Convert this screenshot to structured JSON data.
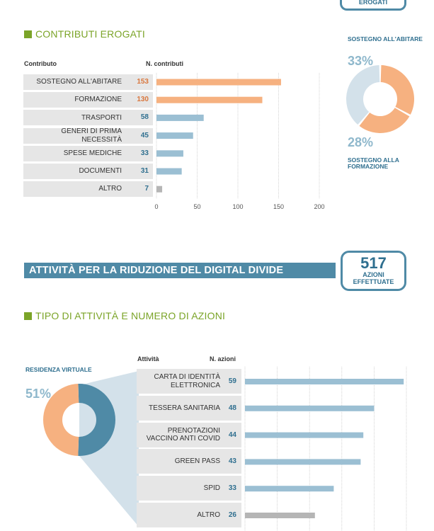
{
  "top_badge": {
    "label": "EROGATI"
  },
  "section1": {
    "title": "CONTRIBUTI EROGATI",
    "col_contributo": "Contributo",
    "col_count": "N. contributi"
  },
  "section2": {
    "banner": "ATTIVITÀ PER LA RIDUZIONE DEL DIGITAL DIVIDE",
    "badge_number": "517",
    "badge_line1": "AZIONI",
    "badge_line2": "EFFETTUATE",
    "title": "TIPO DI ATTIVITÀ E NUMERO DI AZIONI",
    "col_activity": "Attività",
    "col_count": "N. azioni"
  },
  "colors": {
    "orange": "#f6b180",
    "orange_text": "#d9773e",
    "blue": "#9bbfd3",
    "blue_text": "#2f6f8f",
    "gray": "#b5b5b5",
    "green": "#7ba428",
    "dark_blue": "#4f8aa6"
  },
  "chart_data": [
    {
      "type": "bar",
      "orientation": "horizontal",
      "categories": [
        "SOSTEGNO ALL'ABITARE",
        "FORMAZIONE",
        "TRASPORTI",
        "GENERI DI PRIMA NECESSITÀ",
        "SPESE MEDICHE",
        "DOCUMENTI",
        "ALTRO"
      ],
      "values": [
        153,
        130,
        58,
        45,
        33,
        31,
        7
      ],
      "value_labels": [
        "153",
        "130",
        "58",
        "45",
        "33",
        "31",
        "7"
      ],
      "bar_colors": [
        "orange",
        "orange",
        "blue",
        "blue",
        "blue",
        "blue",
        "gray"
      ],
      "xlim": [
        0,
        200
      ],
      "xticks": [
        0,
        50,
        100,
        150,
        200
      ],
      "xtick_labels": [
        "0",
        "50",
        "100",
        "150",
        "200"
      ],
      "grid": true
    },
    {
      "type": "pie",
      "donut": true,
      "slices": [
        {
          "label": "SOSTEGNO ALL'ABITARE",
          "value": 33,
          "display": "33%",
          "color": "orange"
        },
        {
          "label": "SOSTEGNO ALLA FORMAZIONE",
          "value": 28,
          "display": "28%",
          "color": "orange"
        },
        {
          "label": "",
          "value": 39,
          "display": "",
          "color": "light"
        }
      ]
    },
    {
      "type": "pie",
      "donut": true,
      "slices": [
        {
          "label": "RESIDENZA VIRTUALE",
          "value": 51,
          "display": "51%",
          "color": "dark_blue"
        },
        {
          "label": "",
          "value": 49,
          "display": "",
          "color": "orange"
        }
      ]
    },
    {
      "type": "bar",
      "orientation": "horizontal",
      "categories": [
        "CARTA DI IDENTITÀ ELETTRONICA",
        "TESSERA SANITARIA",
        "PRENOTAZIONI VACCINO ANTI COVID",
        "GREEN PASS",
        "SPID",
        "ALTRO"
      ],
      "values": [
        59,
        48,
        44,
        43,
        33,
        26
      ],
      "value_labels": [
        "59",
        "48",
        "44",
        "43",
        "33",
        "26"
      ],
      "bar_colors": [
        "blue",
        "blue",
        "blue",
        "blue",
        "blue",
        "gray"
      ],
      "xlim": [
        0,
        60
      ],
      "grid": true
    }
  ]
}
